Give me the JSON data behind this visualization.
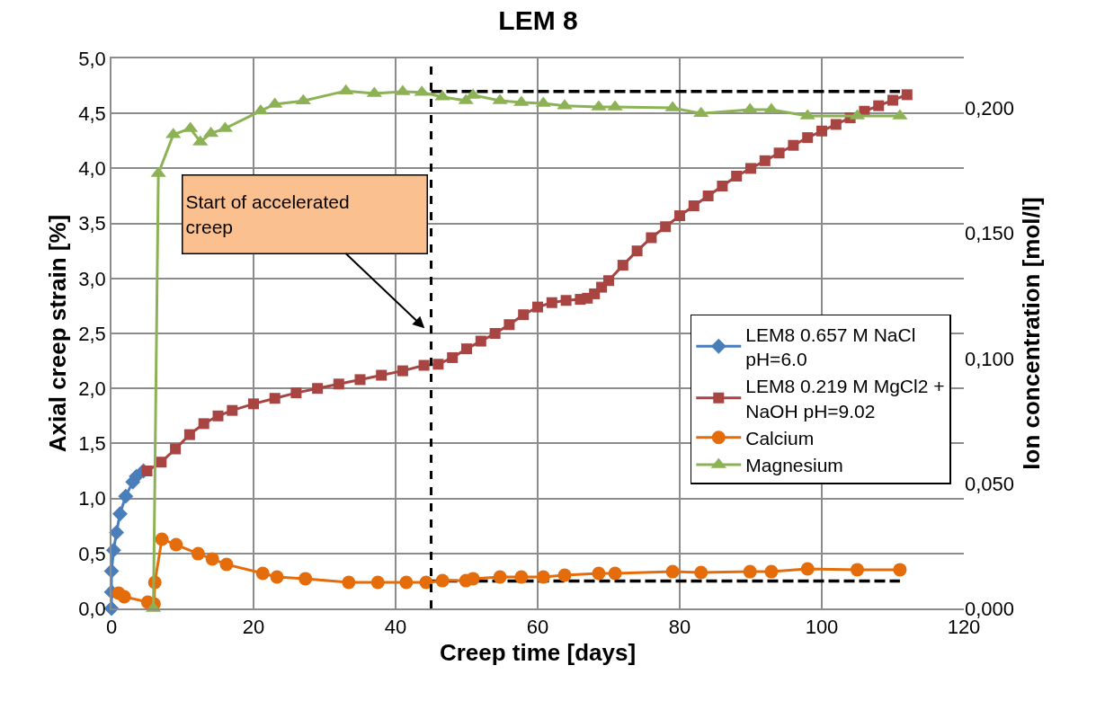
{
  "chart_data": {
    "type": "line",
    "title": "LEM 8",
    "xlabel": "Creep time [days]",
    "ylabel": "Axial creep strain [%]",
    "y2label": "Ion concentration [mol/l]",
    "xlim": [
      0,
      120
    ],
    "xticks": [
      0,
      20,
      40,
      60,
      80,
      100,
      120
    ],
    "ylim": [
      0,
      5.0
    ],
    "yticks": [
      {
        "value": 0,
        "label": "0,0"
      },
      {
        "value": 0.5,
        "label": "0,5"
      },
      {
        "value": 1.0,
        "label": "1,0"
      },
      {
        "value": 1.5,
        "label": "1,5"
      },
      {
        "value": 2.0,
        "label": "2,0"
      },
      {
        "value": 2.5,
        "label": "2,5"
      },
      {
        "value": 3.0,
        "label": "3,0"
      },
      {
        "value": 3.5,
        "label": "3,5"
      },
      {
        "value": 4.0,
        "label": "4,0"
      },
      {
        "value": 4.5,
        "label": "4,5"
      },
      {
        "value": 5.0,
        "label": "5,0"
      }
    ],
    "y2lim": [
      0,
      0.22
    ],
    "y2ticks": [
      {
        "value": 0,
        "label": "0,000"
      },
      {
        "value": 0.05,
        "label": "0,050"
      },
      {
        "value": 0.1,
        "label": "0,100"
      },
      {
        "value": 0.15,
        "label": "0,150"
      },
      {
        "value": 0.2,
        "label": "0,200"
      }
    ],
    "grid": true,
    "legend": "right",
    "annotations": [
      {
        "text": "Start of accelerated creep",
        "x": 45,
        "y": 2.49
      }
    ],
    "ref_lines": [
      {
        "axis": "x",
        "value": 45,
        "label": null,
        "color": "#000000",
        "line_style": "dashed"
      }
    ],
    "series": [
      {
        "name": "LEM8 0.657 M NaCl pH=6.0",
        "color": "#4a7ebb",
        "marker": "diamond",
        "x": [
          0,
          0,
          0,
          0.3,
          0.7,
          1.2,
          2.0,
          3.0,
          3.5,
          4.5
        ],
        "values": [
          0.0,
          0.15,
          0.34,
          0.53,
          0.69,
          0.86,
          1.02,
          1.15,
          1.2,
          1.25
        ]
      },
      {
        "name": "LEM8 0.219 M MgCl2 + NaOH pH=9.02",
        "color": "#a84442",
        "marker": "square",
        "x": [
          5,
          7,
          9,
          11,
          13,
          15,
          17,
          20,
          23,
          26,
          29,
          32,
          35,
          38,
          41,
          44,
          46,
          48,
          50,
          52,
          54,
          56,
          58,
          60,
          62,
          64,
          66,
          67,
          68,
          69,
          70,
          72,
          74,
          76,
          78,
          80,
          82,
          84,
          86,
          88,
          90,
          92,
          94,
          96,
          98,
          100,
          102,
          104,
          106,
          108,
          110,
          112
        ],
        "values": [
          1.25,
          1.33,
          1.45,
          1.58,
          1.68,
          1.75,
          1.8,
          1.86,
          1.91,
          1.96,
          2.0,
          2.04,
          2.08,
          2.12,
          2.16,
          2.21,
          2.22,
          2.28,
          2.36,
          2.43,
          2.5,
          2.58,
          2.67,
          2.74,
          2.78,
          2.8,
          2.81,
          2.82,
          2.86,
          2.92,
          2.98,
          3.12,
          3.25,
          3.37,
          3.47,
          3.57,
          3.66,
          3.75,
          3.84,
          3.93,
          4.0,
          4.07,
          4.14,
          4.21,
          4.28,
          4.34,
          4.4,
          4.46,
          4.52,
          4.57,
          4.62,
          4.67
        ]
      },
      {
        "name": "Calcium",
        "color": "#e46c0a",
        "marker": "circle",
        "axis": "y2",
        "x": [
          1.0,
          1.8,
          5.1,
          6.0,
          6.1,
          7.1,
          9.1,
          12.2,
          14.2,
          16.2,
          21.3,
          23.3,
          27.3,
          33.4,
          37.5,
          41.5,
          44.3,
          46.6,
          49.9,
          50.9,
          54.7,
          57.7,
          60.8,
          63.8,
          68.6,
          70.9,
          79,
          83,
          89.9,
          92.9,
          98,
          105,
          111
        ],
        "values": [
          0.0061,
          0.0047,
          0.0025,
          0.0018,
          0.0104,
          0.0277,
          0.0255,
          0.0219,
          0.0198,
          0.0176,
          0.014,
          0.0126,
          0.0119,
          0.0104,
          0.0104,
          0.0104,
          0.0104,
          0.0111,
          0.0111,
          0.0119,
          0.0126,
          0.0126,
          0.0126,
          0.0133,
          0.014,
          0.014,
          0.0147,
          0.0144,
          0.0147,
          0.0147,
          0.0158,
          0.0155,
          0.0155
        ]
      },
      {
        "name": "Magnesium",
        "color": "#8db255",
        "marker": "triangle",
        "axis": "y2",
        "x": [
          5.9,
          6.6,
          8.7,
          11.1,
          12.5,
          14,
          16,
          21,
          23,
          27,
          33,
          37,
          41,
          43.7,
          46.6,
          49.9,
          50.9,
          54.7,
          57.7,
          60.8,
          63.8,
          68.6,
          70.9,
          79,
          83,
          89.9,
          92.9,
          98,
          105,
          111
        ],
        "values": [
          0.0,
          0.174,
          0.1895,
          0.192,
          0.1866,
          0.19,
          0.192,
          0.199,
          0.2017,
          0.203,
          0.207,
          0.206,
          0.2067,
          0.2064,
          0.2046,
          0.2031,
          0.2053,
          0.2031,
          0.2024,
          0.202,
          0.201,
          0.2006,
          0.2006,
          0.2002,
          0.198,
          0.1995,
          0.1995,
          0.197,
          0.197,
          0.197
        ]
      },
      {
        "type": "line",
        "color": "#000000",
        "marker": "none",
        "line_style": "dashed",
        "x": [
          45,
          111
        ],
        "values": [
          4.7,
          4.7
        ]
      },
      {
        "type": "line",
        "color": "#000000",
        "marker": "none",
        "line_style": "dashed",
        "x": [
          45,
          111
        ],
        "values": [
          0.25,
          0.25
        ]
      }
    ]
  }
}
